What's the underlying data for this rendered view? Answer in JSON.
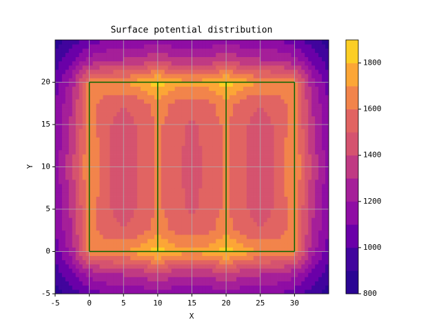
{
  "chart_data": {
    "type": "contourf",
    "title": "Surface potential distribution",
    "x_label": "X",
    "y_label": "Y",
    "x": [
      -5,
      -2.5,
      0,
      2.5,
      5,
      7.5,
      10,
      12.5,
      15,
      17.5,
      20,
      22.5,
      25,
      27.5,
      30,
      32.5,
      35
    ],
    "y": [
      -5,
      -2.5,
      0,
      2.5,
      5,
      7.5,
      10,
      12.5,
      15,
      17.5,
      20,
      22.5,
      25
    ],
    "z": [
      [
        850,
        950,
        1050,
        1100,
        1120,
        1130,
        1150,
        1130,
        1120,
        1130,
        1150,
        1130,
        1120,
        1100,
        1050,
        950,
        850
      ],
      [
        950,
        1100,
        1250,
        1300,
        1320,
        1350,
        1400,
        1350,
        1330,
        1350,
        1400,
        1350,
        1320,
        1300,
        1250,
        1100,
        950
      ],
      [
        1050,
        1250,
        1650,
        1680,
        1700,
        1750,
        1850,
        1750,
        1720,
        1750,
        1850,
        1750,
        1700,
        1680,
        1650,
        1250,
        1050
      ],
      [
        1100,
        1300,
        1650,
        1550,
        1500,
        1550,
        1650,
        1580,
        1550,
        1580,
        1650,
        1550,
        1500,
        1550,
        1650,
        1300,
        1100
      ],
      [
        1120,
        1330,
        1650,
        1520,
        1450,
        1520,
        1620,
        1550,
        1480,
        1550,
        1620,
        1520,
        1450,
        1520,
        1650,
        1330,
        1120
      ],
      [
        1130,
        1350,
        1700,
        1520,
        1450,
        1520,
        1620,
        1550,
        1450,
        1550,
        1620,
        1520,
        1450,
        1520,
        1700,
        1350,
        1130
      ],
      [
        1150,
        1400,
        1700,
        1520,
        1450,
        1520,
        1620,
        1550,
        1440,
        1550,
        1620,
        1520,
        1450,
        1520,
        1700,
        1400,
        1150
      ],
      [
        1130,
        1350,
        1700,
        1520,
        1450,
        1520,
        1620,
        1550,
        1450,
        1550,
        1620,
        1520,
        1450,
        1520,
        1700,
        1350,
        1130
      ],
      [
        1120,
        1330,
        1650,
        1520,
        1450,
        1520,
        1620,
        1550,
        1480,
        1550,
        1620,
        1520,
        1450,
        1520,
        1650,
        1330,
        1120
      ],
      [
        1100,
        1300,
        1650,
        1550,
        1500,
        1550,
        1650,
        1580,
        1550,
        1580,
        1650,
        1550,
        1500,
        1550,
        1650,
        1300,
        1100
      ],
      [
        1050,
        1250,
        1650,
        1680,
        1700,
        1750,
        1850,
        1750,
        1720,
        1750,
        1850,
        1750,
        1700,
        1680,
        1650,
        1250,
        1050
      ],
      [
        950,
        1100,
        1250,
        1300,
        1320,
        1350,
        1400,
        1350,
        1330,
        1350,
        1400,
        1350,
        1320,
        1300,
        1250,
        1100,
        950
      ],
      [
        850,
        950,
        1050,
        1100,
        1120,
        1130,
        1150,
        1130,
        1120,
        1130,
        1150,
        1130,
        1120,
        1100,
        1050,
        950,
        850
      ]
    ],
    "levels": [
      800,
      900,
      1000,
      1100,
      1200,
      1300,
      1400,
      1500,
      1600,
      1700,
      1800,
      1900
    ],
    "colors": [
      "#2a0593",
      "#41049d",
      "#6a00a8",
      "#8f0da4",
      "#a51f99",
      "#c03a83",
      "#d5536f",
      "#e16462",
      "#f2844b",
      "#fca636",
      "#fcce25"
    ],
    "zlim": [
      800,
      1900
    ],
    "zticks": [
      800,
      1000,
      1200,
      1400,
      1600,
      1800
    ],
    "xlim": [
      -5,
      35
    ],
    "ylim": [
      -5,
      25
    ],
    "xticks": [
      -5,
      0,
      5,
      10,
      15,
      20,
      25,
      30
    ],
    "yticks": [
      -5,
      0,
      5,
      10,
      15,
      20
    ],
    "grid": true,
    "outline_x": [
      0,
      10,
      20,
      30
    ],
    "outline_y": [
      0,
      20
    ],
    "outline_color": "#006400"
  }
}
